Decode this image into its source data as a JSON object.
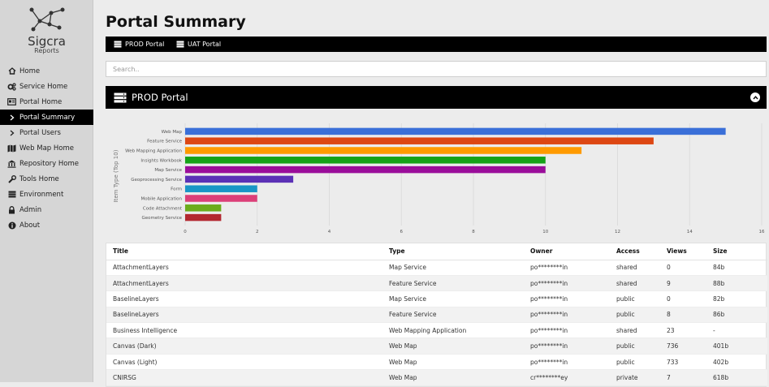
{
  "app": {
    "logo_title": "Sigcra",
    "logo_subtitle": "Reports"
  },
  "sidebar": {
    "items": [
      {
        "label": "Home",
        "icon": "home-icon"
      },
      {
        "label": "Service Home",
        "icon": "gears-icon"
      },
      {
        "label": "Portal Home",
        "icon": "portal-card-icon"
      },
      {
        "label": "Portal Summary",
        "icon": "chevron-right-icon",
        "active": true
      },
      {
        "label": "Portal Users",
        "icon": "chevron-right-icon"
      },
      {
        "label": "Web Map Home",
        "icon": "map-icon"
      },
      {
        "label": "Repository Home",
        "icon": "building-icon"
      },
      {
        "label": "Tools Home",
        "icon": "wrench-icon"
      },
      {
        "label": "Environment",
        "icon": "server-icon"
      },
      {
        "label": "Admin",
        "icon": "lock-icon"
      },
      {
        "label": "About",
        "icon": "info-icon"
      }
    ]
  },
  "page": {
    "title": "Portal Summary"
  },
  "tabs": [
    {
      "label": "PROD Portal",
      "icon": "server-icon"
    },
    {
      "label": "UAT Portal",
      "icon": "server-icon"
    }
  ],
  "search": {
    "placeholder": "Search..",
    "value": ""
  },
  "panel": {
    "title": "PROD Portal",
    "icon": "server-icon",
    "collapse_icon": "chevron-up-icon"
  },
  "chart_data": {
    "type": "bar",
    "orientation": "horizontal",
    "ylabel": "Item Type (Top 10)",
    "xlabel": "",
    "xlim": [
      0,
      16
    ],
    "xticks": [
      "0",
      "2",
      "4",
      "6",
      "8",
      "10",
      "12",
      "14",
      "16"
    ],
    "grid": true,
    "categories": [
      "Web Map",
      "Feature Service",
      "Web Mapping Application",
      "Insights Workbook",
      "Map Service",
      "Geoprocessing Service",
      "Form",
      "Mobile Application",
      "Code Attachment",
      "Geometry Service"
    ],
    "values": [
      15,
      13,
      11,
      10,
      10,
      3,
      2,
      2,
      1,
      1
    ],
    "colors": [
      "#3a6fd8",
      "#dd4713",
      "#ff9a00",
      "#16a218",
      "#9a0d9a",
      "#5b31b6",
      "#1996c6",
      "#dc3f78",
      "#6bac1c",
      "#b3272f"
    ]
  },
  "table": {
    "columns": [
      "Title",
      "Type",
      "Owner",
      "Access",
      "Views",
      "Size"
    ],
    "rows": [
      [
        "AttachmentLayers",
        "Map Service",
        "po********in",
        "shared",
        "0",
        "84b"
      ],
      [
        "AttachmentLayers",
        "Feature Service",
        "po********in",
        "shared",
        "9",
        "88b"
      ],
      [
        "BaselineLayers",
        "Map Service",
        "po********in",
        "public",
        "0",
        "82b"
      ],
      [
        "BaselineLayers",
        "Feature Service",
        "po********in",
        "public",
        "8",
        "86b"
      ],
      [
        "Business Intelligence",
        "Web Mapping Application",
        "po********in",
        "shared",
        "23",
        "-"
      ],
      [
        "Canvas (Dark)",
        "Web Map",
        "po********in",
        "public",
        "736",
        "401b"
      ],
      [
        "Canvas (Light)",
        "Web Map",
        "po********in",
        "public",
        "733",
        "402b"
      ],
      [
        "CNIRSG",
        "Web Map",
        "cr********ey",
        "private",
        "7",
        "618b"
      ]
    ]
  }
}
